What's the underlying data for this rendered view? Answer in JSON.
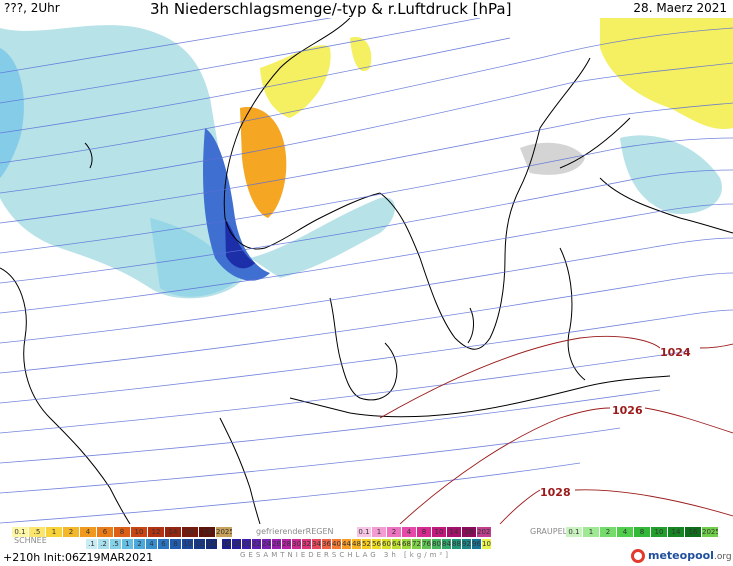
{
  "header": {
    "left": "???, 2Uhr",
    "title": "3h Niederschlagsmenge/-typ & r.Luftdruck [hPa]",
    "date": "28. Maerz 2021"
  },
  "isobars": [
    {
      "label": "1024",
      "color": "#9b1b1b"
    },
    {
      "label": "1026",
      "color": "#9b1b1b"
    },
    {
      "label": "1028",
      "color": "#9b1b1b"
    }
  ],
  "legend": {
    "rain_label": "",
    "freezing_rain_label": "gefrierenderREGEN",
    "graupel_label": "GRAUPEL",
    "snow_label": "SCHNEE",
    "total_label": "GESAMTNIEDERSCHLAG 3h [kg/m²]",
    "rain_values": [
      "0.1",
      ".5",
      "1",
      "2",
      "4",
      "6",
      "8",
      "10",
      "12",
      "14",
      "16",
      "18",
      "2025+"
    ],
    "freezing_values": [
      "0.1",
      "1",
      "2",
      "4",
      "8",
      "10",
      "14",
      "16",
      "2025+"
    ],
    "graupel_values": [
      "0.1",
      "1",
      "2",
      "4",
      "8",
      "10",
      "14",
      "16",
      "2025+"
    ],
    "snow_values": [
      ".1",
      ".2",
      ".5",
      "1",
      "2",
      "4",
      "6",
      "8",
      "10",
      "12",
      "14"
    ],
    "total_values": [
      "16",
      "18",
      "20",
      "22",
      "24",
      "26",
      "28",
      "30",
      "32",
      "34",
      "36",
      "40",
      "44",
      "48",
      "52",
      "56",
      "60",
      "64",
      "68",
      "72",
      "76",
      "80",
      "84",
      "88",
      "92",
      "96",
      "100"
    ]
  },
  "footer": {
    "run": "+210h Init:06Z19MAR2021",
    "brand": "meteopool",
    "brand_suffix": ".org"
  },
  "colors": {
    "isobar_blue": "#5b6fd8",
    "isobar_red": "#9b1b1b",
    "precip_light": "#9fd8e0",
    "precip_blue": "#3f6fd0",
    "precip_orange": "#f5a623",
    "precip_yellow": "#f5ef62"
  }
}
